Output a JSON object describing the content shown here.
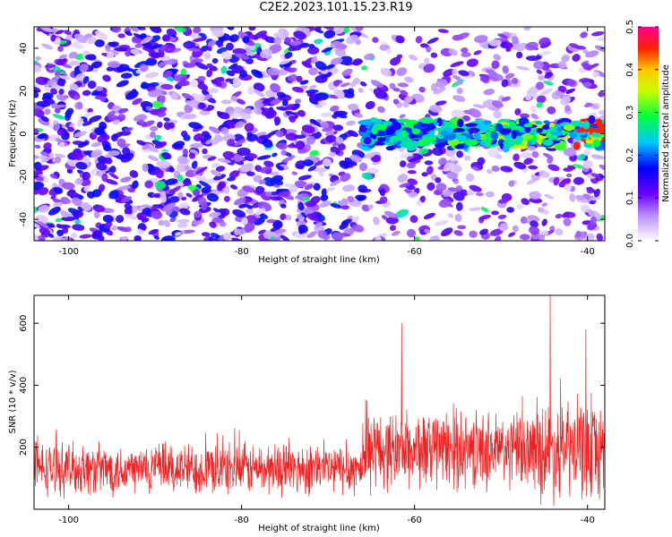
{
  "title": "C2E2.2023.101.15.23.R19",
  "chart_data": [
    {
      "type": "heatmap",
      "title": "C2E2.2023.101.15.23.R19",
      "xlabel": "Height of straight line (km)",
      "ylabel": "Frequency (Hz)",
      "xlim": [
        -104,
        -38
      ],
      "ylim": [
        -50,
        50
      ],
      "xticks": [
        -100,
        -80,
        -60,
        -40
      ],
      "yticks": [
        -40,
        -20,
        0,
        20,
        40
      ],
      "colorbar": {
        "label": "Normalized spectral amplitude",
        "range": [
          0,
          0.5
        ],
        "ticks": [
          0.0,
          0.1,
          0.2,
          0.3,
          0.4,
          0.5
        ],
        "colors": [
          "#ffffff",
          "#7a00ff",
          "#0000ff",
          "#00ffff",
          "#00ff00",
          "#ffff00",
          "#ff0000",
          "#ff00aa"
        ]
      },
      "description_of_features": {
        "noise_amplitude_range": [
          0.0,
          0.1
        ],
        "signal_band_frequency_hz": 0,
        "signal_band_start_km": -66,
        "signal_band_end_km": -38,
        "peak_amplitude_near_km": -40,
        "peak_amplitude": 0.45
      }
    },
    {
      "type": "line",
      "xlabel": "Height of straight line (km)",
      "ylabel": "SNR (10 * v/v)",
      "xlim": [
        -104,
        -38
      ],
      "ylim": [
        0,
        690
      ],
      "xticks": [
        -100,
        -80,
        -60,
        -40
      ],
      "yticks": [
        200,
        400,
        600
      ],
      "color": "#ee2222",
      "segments": [
        {
          "x_range": [
            -104,
            -66
          ],
          "mean": 130,
          "spread": 100
        },
        {
          "x_range": [
            -66,
            -46
          ],
          "mean": 190,
          "spread": 150
        },
        {
          "x_range": [
            -46,
            -38
          ],
          "mean": 190,
          "spread": 190
        }
      ],
      "peaks": [
        {
          "x": -61.5,
          "y": 600
        },
        {
          "x": -44.3,
          "y": 690
        },
        {
          "x": -40.2,
          "y": 580
        }
      ]
    }
  ]
}
